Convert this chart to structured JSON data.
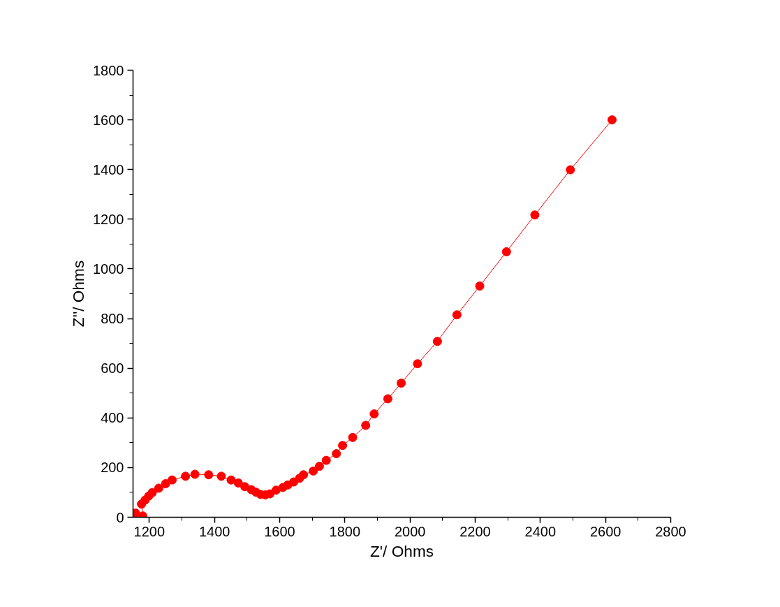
{
  "chart_data": {
    "type": "line",
    "xlabel": "Z'/ Ohms",
    "ylabel": "Z''/ Ohms",
    "xlim": [
      1150,
      2800
    ],
    "xticks": [
      1200,
      1400,
      1600,
      1800,
      2000,
      2200,
      2400,
      2600,
      2800
    ],
    "ylim": [
      0,
      1800
    ],
    "yticks": [
      0,
      200,
      400,
      600,
      800,
      1000,
      1200,
      1400,
      1600,
      1800
    ],
    "marker": "circle",
    "line_style": "solid",
    "grid": false,
    "series": [
      {
        "color": "#ff0000",
        "x": [
          1158,
          1180,
          1176,
          1187,
          1198,
          1209,
          1229,
          1250,
          1270,
          1311,
          1340,
          1382,
          1421,
          1451,
          1473,
          1493,
          1513,
          1527,
          1541,
          1556,
          1570,
          1589,
          1610,
          1625,
          1643,
          1661,
          1673,
          1703,
          1722,
          1743,
          1774,
          1793,
          1824,
          1864,
          1890,
          1932,
          1973,
          2023,
          2084,
          2144,
          2214,
          2296,
          2383,
          2492,
          2620
        ],
        "values": [
          17,
          5,
          53,
          69,
          85,
          99,
          117,
          135,
          150,
          165,
          173,
          171,
          165,
          150,
          138,
          123,
          111,
          101,
          92,
          90,
          94,
          109,
          120,
          130,
          142,
          157,
          171,
          186,
          205,
          229,
          256,
          289,
          321,
          370,
          416,
          477,
          540,
          618,
          708,
          815,
          931,
          1069,
          1217,
          1399,
          1600
        ]
      }
    ]
  }
}
